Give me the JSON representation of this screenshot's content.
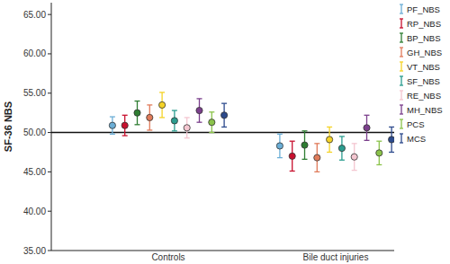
{
  "chart_data": {
    "type": "errorbar",
    "y_label": "SF-36 NBS",
    "categories": [
      "Controls",
      "Bile duct injuries"
    ],
    "ylim": [
      35,
      66.5
    ],
    "yticks": [
      {
        "value": 35,
        "label": "35.00"
      },
      {
        "value": 40,
        "label": "40.00"
      },
      {
        "value": 45,
        "label": "45.00"
      },
      {
        "value": 50,
        "label": "50.00"
      },
      {
        "value": 55,
        "label": "55.00"
      },
      {
        "value": 60,
        "label": "60.00"
      },
      {
        "value": 65,
        "label": "65.00"
      }
    ],
    "reference_value": 50,
    "legend": "right",
    "marker": "circle",
    "series": [
      {
        "name": "PF_NBS",
        "color": "#6baed6",
        "values": [
          50.9,
          48.3
        ],
        "errors": [
          1.1,
          1.5
        ]
      },
      {
        "name": "RP_NBS",
        "color": "#c8102e",
        "values": [
          50.9,
          47.0
        ],
        "errors": [
          1.3,
          1.9
        ]
      },
      {
        "name": "BP_NBS",
        "color": "#2e7d32",
        "values": [
          52.5,
          48.4
        ],
        "errors": [
          1.5,
          1.8
        ]
      },
      {
        "name": "GH_NBS",
        "color": "#e07b5a",
        "values": [
          51.9,
          46.8
        ],
        "errors": [
          1.6,
          1.8
        ]
      },
      {
        "name": "VT_NBS",
        "color": "#f5d327",
        "values": [
          53.5,
          49.1
        ],
        "errors": [
          1.6,
          1.6
        ]
      },
      {
        "name": "SF_NBS",
        "color": "#2a9d8f",
        "values": [
          51.5,
          48.0
        ],
        "errors": [
          1.3,
          1.5
        ]
      },
      {
        "name": "RE_NBS",
        "color": "#f4c6d0",
        "values": [
          50.6,
          46.9
        ],
        "errors": [
          1.3,
          1.7
        ]
      },
      {
        "name": "MH_NBS",
        "color": "#7b3f8c",
        "values": [
          52.8,
          50.6
        ],
        "errors": [
          1.5,
          1.6
        ]
      },
      {
        "name": "PCS",
        "color": "#8bc34a",
        "values": [
          51.3,
          47.4
        ],
        "errors": [
          1.3,
          1.5
        ]
      },
      {
        "name": "MCS",
        "color": "#2c4a8c",
        "values": [
          52.2,
          49.1
        ],
        "errors": [
          1.5,
          1.6
        ]
      }
    ]
  }
}
